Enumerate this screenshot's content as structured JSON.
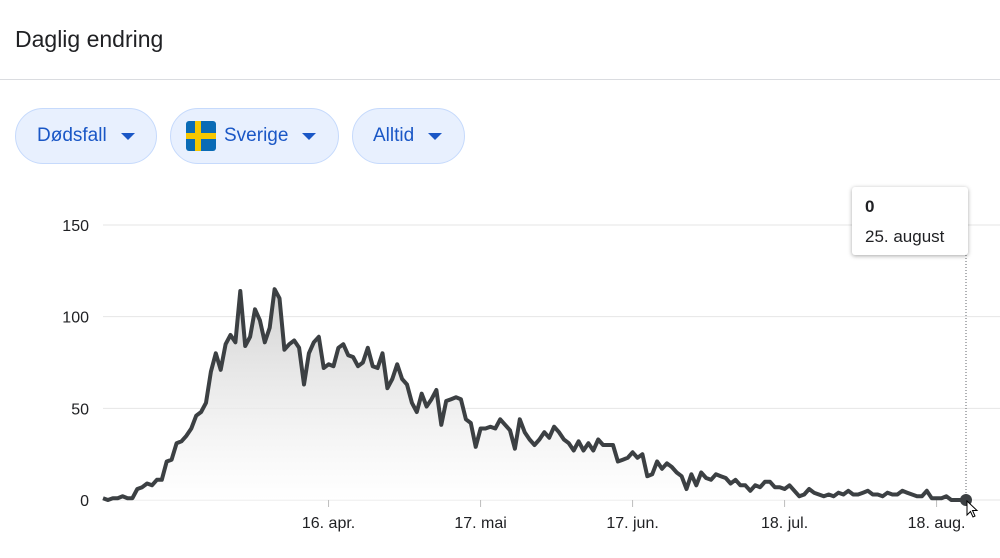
{
  "header": {
    "title": "Daglig endring"
  },
  "filters": [
    {
      "label": "Dødsfall",
      "icon": ""
    },
    {
      "label": "Sverige",
      "icon": "sweden-flag-icon"
    },
    {
      "label": "Alltid",
      "icon": ""
    }
  ],
  "tooltip": {
    "value": "0",
    "date": "25. august"
  },
  "colors": {
    "line": "#3c4043",
    "chip_text": "#1a57c6",
    "chip_bg": "#e8f0fe",
    "grid": "#e6e6e6"
  },
  "chart_data": {
    "type": "area",
    "title": "",
    "xlabel": "",
    "ylabel": "",
    "ylim": [
      0,
      150
    ],
    "y_ticks": [
      0,
      50,
      100,
      150
    ],
    "x_ticks": [
      {
        "day": 46,
        "label": "16. apr."
      },
      {
        "day": 77,
        "label": "17. mai"
      },
      {
        "day": 108,
        "label": "17. jun."
      },
      {
        "day": 139,
        "label": "18. jul."
      },
      {
        "day": 170,
        "label": "18. aug."
      }
    ],
    "start_date": "2020-03-01",
    "values": [
      1,
      0,
      1,
      1,
      2,
      1,
      1,
      6,
      7,
      9,
      8,
      11,
      11,
      21,
      22,
      31,
      32,
      35,
      39,
      46,
      48,
      53,
      70,
      80,
      71,
      85,
      90,
      86,
      114,
      84,
      89,
      104,
      98,
      86,
      94,
      115,
      110,
      82,
      85,
      87,
      83,
      63,
      80,
      86,
      89,
      72,
      74,
      73,
      83,
      85,
      79,
      78,
      73,
      75,
      83,
      73,
      72,
      80,
      61,
      66,
      74,
      66,
      63,
      53,
      48,
      58,
      51,
      55,
      60,
      41,
      54,
      55,
      56,
      55,
      44,
      42,
      29,
      39,
      39,
      40,
      39,
      44,
      41,
      38,
      28,
      44,
      37,
      33,
      30,
      33,
      37,
      34,
      40,
      37,
      33,
      31,
      27,
      32,
      27,
      31,
      27,
      33,
      30,
      30,
      30,
      21,
      22,
      23,
      26,
      23,
      25,
      13,
      14,
      21,
      17,
      20,
      18,
      15,
      13,
      6,
      14,
      8,
      15,
      12,
      11,
      14,
      13,
      12,
      9,
      11,
      8,
      8,
      5,
      8,
      7,
      10,
      10,
      7,
      7,
      6,
      8,
      5,
      2,
      3,
      6,
      4,
      3,
      2,
      3,
      2,
      4,
      3,
      5,
      3,
      3,
      4,
      5,
      3,
      3,
      2,
      4,
      3,
      3,
      5,
      4,
      3,
      2,
      2,
      5,
      1,
      1,
      1,
      2,
      0,
      0,
      0,
      0
    ]
  }
}
